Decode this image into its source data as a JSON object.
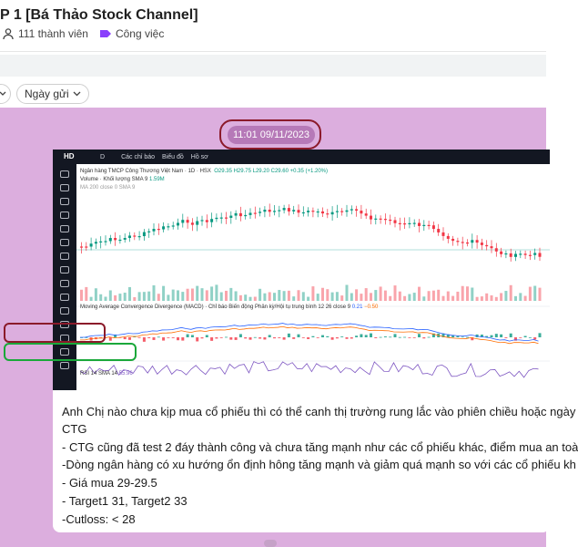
{
  "header": {
    "title": "P 1 [Bá Thảo Stock Channel]",
    "members": "111 thành viên",
    "category": "Công việc"
  },
  "filters": {
    "sort_label": "Ngày gửi"
  },
  "message": {
    "timestamp": "11:01 09/11/2023",
    "lines": [
      "Anh Chị nào chưa kịp mua cổ phiếu thì có thể canh thị trường rung lắc vào phiên chiều hoặc ngày",
      "CTG",
      "- CTG cũng đã test 2 đáy thành công và chưa tăng mạnh như các cổ phiếu khác, điểm mua an toà",
      "-Dòng ngân hàng có xu hướng ổn định hông tăng mạnh và giảm quá mạnh so với các cổ phiếu kh",
      "- Giá mua 29-29.5",
      "- Target1 31, Target2 33",
      "-Cutloss: < 28"
    ]
  },
  "chart": {
    "toolbar_logo": "HD",
    "toolbar_items": [
      "D",
      "Các chỉ báo",
      "Biểu đồ",
      "Hồ sơ"
    ],
    "legend_title": "Ngân hàng TMCP Công Thương Việt Nam · 1D · HSX",
    "legend_ohlc": "O29.35 H29.75 L29.20 C29.60 +0.35 (+1.20%)",
    "legend_volume": "Volume · Khối lượng SMA 9",
    "legend_volume_value": "1.59M",
    "legend_ma": "MA 200 close 0 SMA 9",
    "macd_label": "Moving Average Convergence Divergence (MACD) · Chỉ báo Biến động Phân kỳ/Hội tụ trung bình 12 26 close 9",
    "macd_value1": "0.21",
    "macd_value2": "−0.50",
    "rsi_label": "RSI 14 SMA 14",
    "rsi_value": "55.96"
  },
  "colors": {
    "chat_bg": "#dcaede",
    "timestamp_bg": "#b679b8",
    "highlight_red": "#8b1a2a",
    "highlight_green": "#1aa83a",
    "candle_up": "#089981",
    "candle_down": "#f23645"
  },
  "icons": {
    "members": "people-icon",
    "category": "tag-icon",
    "dropdown": "chevron-down-icon"
  }
}
